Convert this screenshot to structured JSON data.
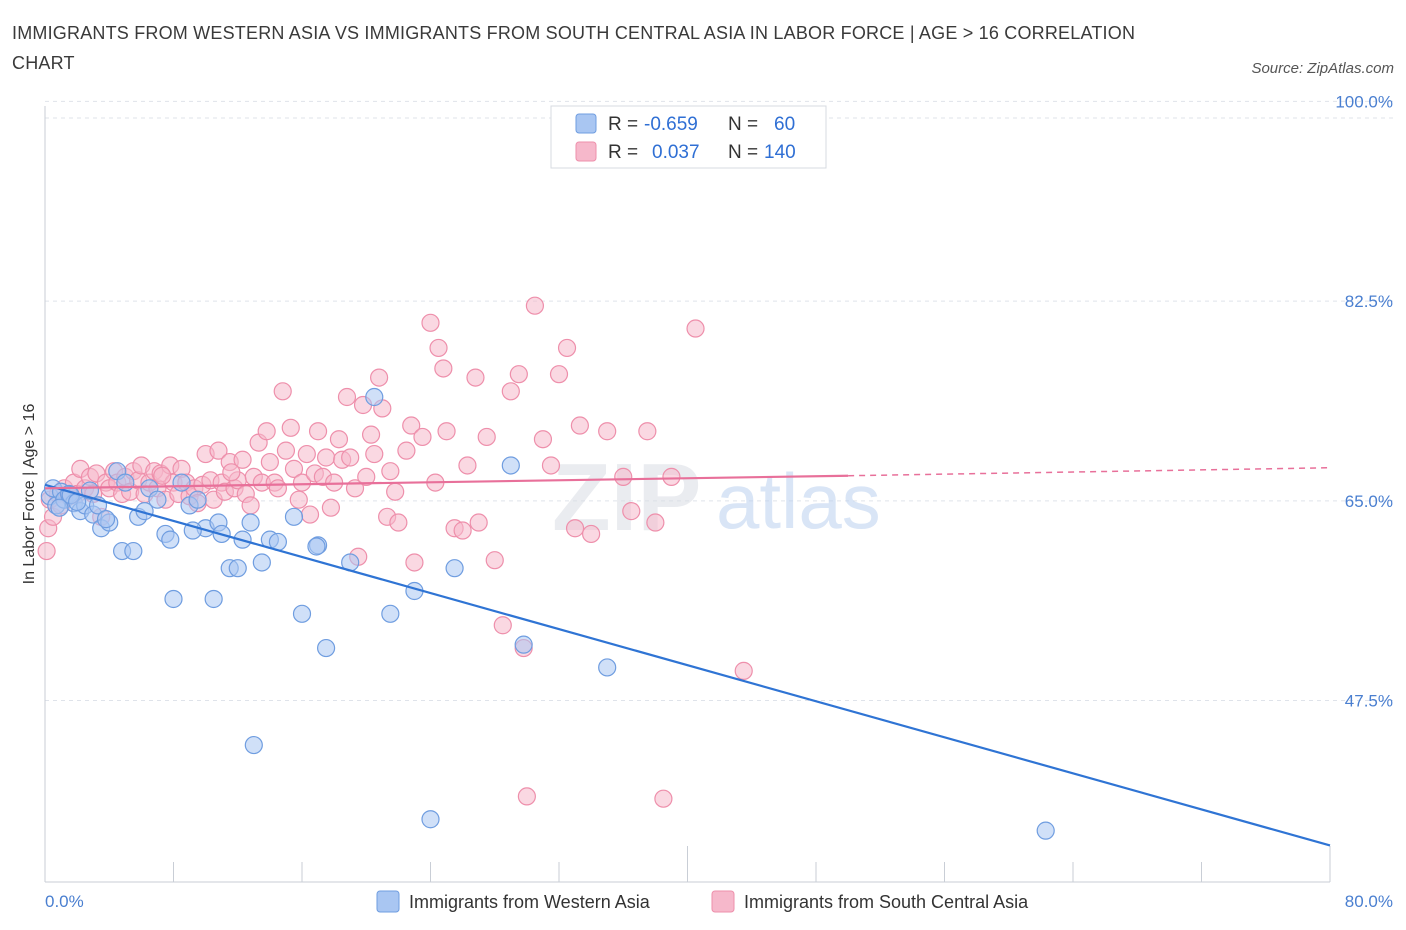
{
  "title": "IMMIGRANTS FROM WESTERN ASIA VS IMMIGRANTS FROM SOUTH CENTRAL ASIA IN LABOR FORCE | AGE > 16 CORRELATION CHART",
  "source": "Source: ZipAtlas.com",
  "watermark": {
    "zip": "ZIP",
    "atlas": "atlas"
  },
  "colors": {
    "blue_fill": "#a9c6f2",
    "blue_stroke": "#6f9de0",
    "blue_line": "#2f74d4",
    "pink_fill": "#f6b8cb",
    "pink_stroke": "#ee8fab",
    "pink_line": "#e8709a",
    "tick_text": "#4a7fd0",
    "grid": "#dfe3ea"
  },
  "legend": {
    "rows": [
      {
        "r_label": "R =",
        "r_value": "-0.659",
        "n_label": "N =",
        "n_value": "60",
        "swatch": "blue"
      },
      {
        "r_label": "R =",
        "r_value": "0.037",
        "n_label": "N =",
        "n_value": "140",
        "swatch": "pink"
      }
    ]
  },
  "chart_data": {
    "type": "scatter",
    "title": "IMMIGRANTS FROM WESTERN ASIA VS IMMIGRANTS FROM SOUTH CENTRAL ASIA IN LABOR FORCE | AGE > 16 CORRELATION CHART",
    "xlabel": "",
    "ylabel": "In Labor Force | Age > 16",
    "xlim": [
      0,
      80
    ],
    "ylim": [
      33,
      101
    ],
    "x_tick_labels": [
      "0.0%",
      "80.0%"
    ],
    "y_ticks": [
      47.5,
      65.0,
      82.5,
      100.0
    ],
    "y_tick_labels": [
      "47.5%",
      "65.0%",
      "82.5%",
      "100.0%"
    ],
    "grid": true,
    "legend_position": "top-center",
    "series": [
      {
        "name": "Immigrants from Western Asia",
        "color": "#a9c6f2",
        "trend": {
          "x": [
            0,
            80
          ],
          "y": [
            67.8,
            36.2
          ],
          "dashed_from": null
        },
        "points": [
          [
            0.3,
            66.8
          ],
          [
            0.5,
            67.5
          ],
          [
            0.7,
            66.0
          ],
          [
            1.0,
            67.2
          ],
          [
            1.2,
            66.5
          ],
          [
            1.5,
            67.0
          ],
          [
            1.8,
            66.2
          ],
          [
            2.2,
            65.5
          ],
          [
            2.5,
            66.0
          ],
          [
            2.8,
            67.3
          ],
          [
            3.0,
            65.2
          ],
          [
            3.3,
            66.0
          ],
          [
            3.5,
            64.0
          ],
          [
            4.0,
            64.5
          ],
          [
            4.5,
            69.0
          ],
          [
            4.8,
            62.0
          ],
          [
            5.0,
            68.0
          ],
          [
            5.5,
            62.0
          ],
          [
            5.8,
            65.0
          ],
          [
            6.2,
            65.5
          ],
          [
            6.5,
            67.5
          ],
          [
            7.0,
            66.5
          ],
          [
            7.5,
            63.5
          ],
          [
            7.8,
            63.0
          ],
          [
            8.0,
            57.8
          ],
          [
            8.5,
            68.0
          ],
          [
            9.0,
            66.0
          ],
          [
            9.5,
            66.5
          ],
          [
            10.0,
            64.0
          ],
          [
            10.5,
            57.8
          ],
          [
            10.8,
            64.5
          ],
          [
            11.0,
            63.5
          ],
          [
            11.5,
            60.5
          ],
          [
            12.0,
            60.5
          ],
          [
            12.3,
            63.0
          ],
          [
            12.8,
            64.5
          ],
          [
            13.0,
            45.0
          ],
          [
            13.5,
            61.0
          ],
          [
            14.0,
            63.0
          ],
          [
            14.5,
            62.8
          ],
          [
            15.5,
            65.0
          ],
          [
            16.0,
            56.5
          ],
          [
            17.0,
            62.5
          ],
          [
            17.5,
            53.5
          ],
          [
            19.0,
            61.0
          ],
          [
            20.5,
            75.5
          ],
          [
            21.5,
            56.5
          ],
          [
            23.0,
            58.5
          ],
          [
            24.0,
            38.5
          ],
          [
            25.5,
            60.5
          ],
          [
            29.0,
            69.5
          ],
          [
            29.8,
            53.8
          ],
          [
            35.0,
            51.8
          ],
          [
            62.3,
            37.5
          ],
          [
            0.9,
            65.8
          ],
          [
            1.6,
            66.9
          ],
          [
            2.0,
            66.3
          ],
          [
            3.8,
            64.8
          ],
          [
            9.2,
            63.8
          ],
          [
            16.9,
            62.4
          ]
        ]
      },
      {
        "name": "Immigrants from South Central Asia",
        "color": "#f6b8cb",
        "trend": {
          "x": [
            0,
            50,
            80
          ],
          "y": [
            67.5,
            68.6,
            69.3
          ],
          "dashed_from": 50
        },
        "points": [
          [
            0.1,
            62.0
          ],
          [
            0.2,
            64.0
          ],
          [
            0.3,
            66.5
          ],
          [
            0.5,
            65.0
          ],
          [
            0.8,
            67.0
          ],
          [
            1.0,
            66.0
          ],
          [
            1.2,
            67.5
          ],
          [
            1.5,
            66.8
          ],
          [
            1.8,
            68.0
          ],
          [
            2.0,
            67.0
          ],
          [
            2.2,
            69.2
          ],
          [
            2.5,
            67.5
          ],
          [
            2.8,
            68.5
          ],
          [
            3.0,
            67.0
          ],
          [
            3.2,
            68.8
          ],
          [
            3.5,
            65.0
          ],
          [
            3.8,
            68.0
          ],
          [
            4.0,
            67.5
          ],
          [
            4.3,
            69.0
          ],
          [
            4.5,
            68.0
          ],
          [
            4.8,
            67.0
          ],
          [
            5.0,
            68.5
          ],
          [
            5.3,
            67.2
          ],
          [
            5.5,
            69.0
          ],
          [
            5.8,
            68.2
          ],
          [
            6.0,
            69.5
          ],
          [
            6.2,
            67.0
          ],
          [
            6.5,
            68.0
          ],
          [
            6.8,
            69.0
          ],
          [
            7.0,
            67.5
          ],
          [
            7.2,
            68.8
          ],
          [
            7.5,
            66.5
          ],
          [
            7.8,
            69.5
          ],
          [
            8.0,
            68.0
          ],
          [
            8.3,
            67.0
          ],
          [
            8.5,
            69.2
          ],
          [
            8.8,
            68.0
          ],
          [
            9.0,
            66.8
          ],
          [
            9.3,
            67.5
          ],
          [
            9.5,
            66.2
          ],
          [
            9.8,
            67.8
          ],
          [
            10.0,
            70.5
          ],
          [
            10.3,
            68.2
          ],
          [
            10.5,
            66.5
          ],
          [
            10.8,
            70.8
          ],
          [
            11.0,
            68.0
          ],
          [
            11.2,
            67.2
          ],
          [
            11.5,
            69.8
          ],
          [
            11.8,
            67.5
          ],
          [
            12.0,
            68.2
          ],
          [
            12.3,
            70.0
          ],
          [
            12.5,
            67.0
          ],
          [
            12.8,
            66.0
          ],
          [
            13.0,
            68.5
          ],
          [
            13.3,
            71.5
          ],
          [
            13.5,
            68.0
          ],
          [
            13.8,
            72.5
          ],
          [
            14.0,
            69.8
          ],
          [
            14.3,
            68.0
          ],
          [
            14.5,
            67.5
          ],
          [
            14.8,
            76.0
          ],
          [
            15.0,
            70.8
          ],
          [
            15.3,
            72.8
          ],
          [
            15.5,
            69.2
          ],
          [
            15.8,
            66.5
          ],
          [
            16.0,
            68.0
          ],
          [
            16.3,
            70.5
          ],
          [
            16.5,
            65.2
          ],
          [
            16.8,
            68.8
          ],
          [
            17.0,
            72.5
          ],
          [
            17.3,
            68.5
          ],
          [
            17.5,
            70.2
          ],
          [
            17.8,
            65.8
          ],
          [
            18.0,
            68.0
          ],
          [
            18.3,
            71.8
          ],
          [
            18.5,
            70.0
          ],
          [
            18.8,
            75.5
          ],
          [
            19.0,
            70.2
          ],
          [
            19.3,
            67.5
          ],
          [
            19.5,
            61.5
          ],
          [
            19.8,
            74.8
          ],
          [
            20.0,
            68.5
          ],
          [
            20.3,
            72.2
          ],
          [
            20.5,
            70.5
          ],
          [
            20.8,
            77.2
          ],
          [
            21.0,
            74.5
          ],
          [
            21.3,
            65.0
          ],
          [
            21.5,
            69.0
          ],
          [
            21.8,
            67.2
          ],
          [
            22.0,
            64.5
          ],
          [
            22.5,
            70.8
          ],
          [
            22.8,
            73.0
          ],
          [
            23.0,
            61.0
          ],
          [
            23.5,
            72.0
          ],
          [
            24.0,
            82.0
          ],
          [
            24.3,
            68.0
          ],
          [
            24.5,
            79.8
          ],
          [
            24.8,
            78.0
          ],
          [
            25.0,
            72.5
          ],
          [
            25.5,
            64.0
          ],
          [
            26.0,
            63.8
          ],
          [
            26.3,
            69.5
          ],
          [
            26.8,
            77.2
          ],
          [
            27.0,
            64.5
          ],
          [
            27.5,
            72.0
          ],
          [
            28.0,
            61.2
          ],
          [
            28.5,
            55.5
          ],
          [
            29.0,
            76.0
          ],
          [
            29.5,
            77.5
          ],
          [
            29.8,
            53.5
          ],
          [
            30.5,
            83.5
          ],
          [
            31.0,
            71.8
          ],
          [
            31.5,
            69.5
          ],
          [
            32.0,
            77.5
          ],
          [
            32.5,
            79.8
          ],
          [
            33.0,
            64.0
          ],
          [
            33.3,
            73.0
          ],
          [
            34.0,
            63.5
          ],
          [
            35.0,
            72.5
          ],
          [
            36.0,
            68.5
          ],
          [
            36.5,
            65.5
          ],
          [
            37.5,
            72.5
          ],
          [
            38.0,
            64.5
          ],
          [
            39.0,
            68.5
          ],
          [
            40.5,
            81.5
          ],
          [
            43.5,
            51.5
          ],
          [
            30.0,
            40.5
          ],
          [
            38.5,
            40.3
          ],
          [
            11.6,
            68.9
          ],
          [
            7.3,
            68.6
          ]
        ]
      }
    ]
  },
  "bottom_legend": [
    {
      "label": "Immigrants from Western Asia",
      "swatch": "blue"
    },
    {
      "label": "Immigrants from South Central Asia",
      "swatch": "pink"
    }
  ]
}
